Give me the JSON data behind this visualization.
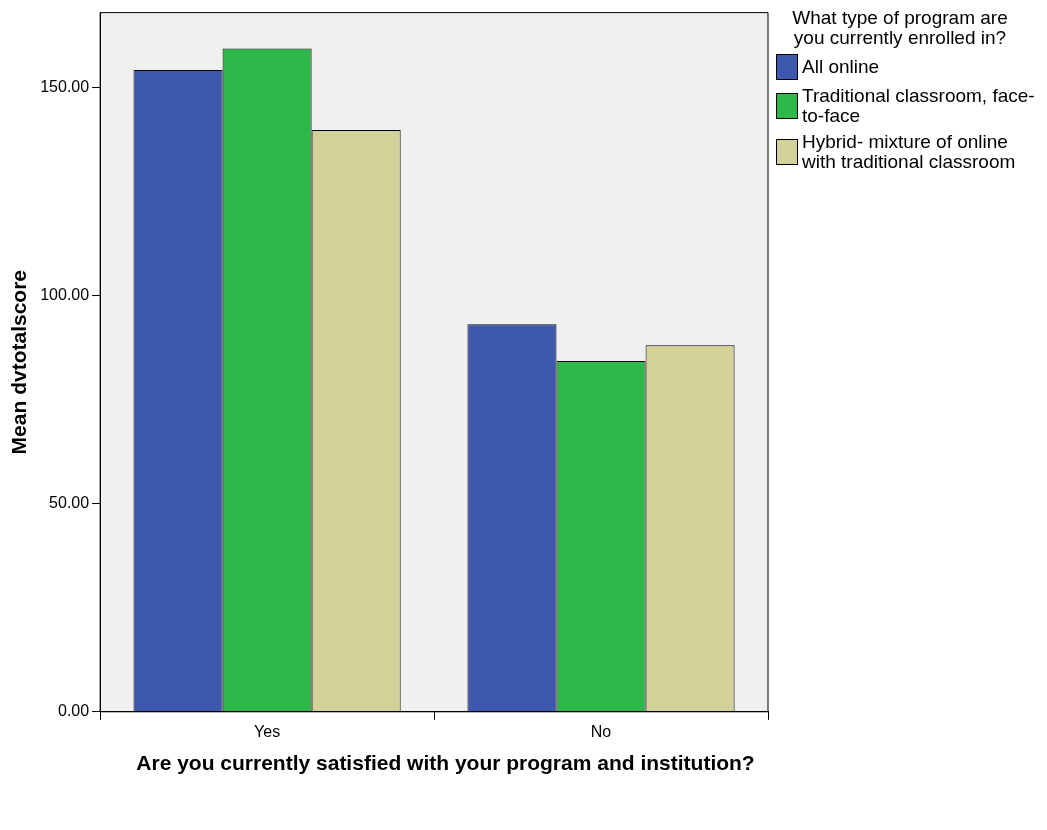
{
  "chart_data": {
    "type": "bar",
    "xlabel": "Are you currently satisfied with your program and institution?",
    "ylabel": "Mean dvtotalscore",
    "legend_title": "What type of program are you currently enrolled in?",
    "categories": [
      "Yes",
      "No"
    ],
    "series": [
      {
        "name": "All online",
        "color": "#3d58ad",
        "values": [
          154.2,
          93.1
        ]
      },
      {
        "name": "Traditional classroom, face-to-face",
        "color": "#2fb84a",
        "values": [
          159.4,
          84.3
        ]
      },
      {
        "name": "Hybrid- mixture of online with traditional classroom",
        "color": "#d4d09a",
        "values": [
          139.8,
          88.1
        ]
      }
    ],
    "ylim": [
      0,
      168
    ],
    "yticks": [
      {
        "value": 0,
        "label": "0.00"
      },
      {
        "value": 50,
        "label": "50.00"
      },
      {
        "value": 100,
        "label": "100.00"
      },
      {
        "value": 150,
        "label": "150.00"
      }
    ],
    "grid": false,
    "legend": "right"
  }
}
